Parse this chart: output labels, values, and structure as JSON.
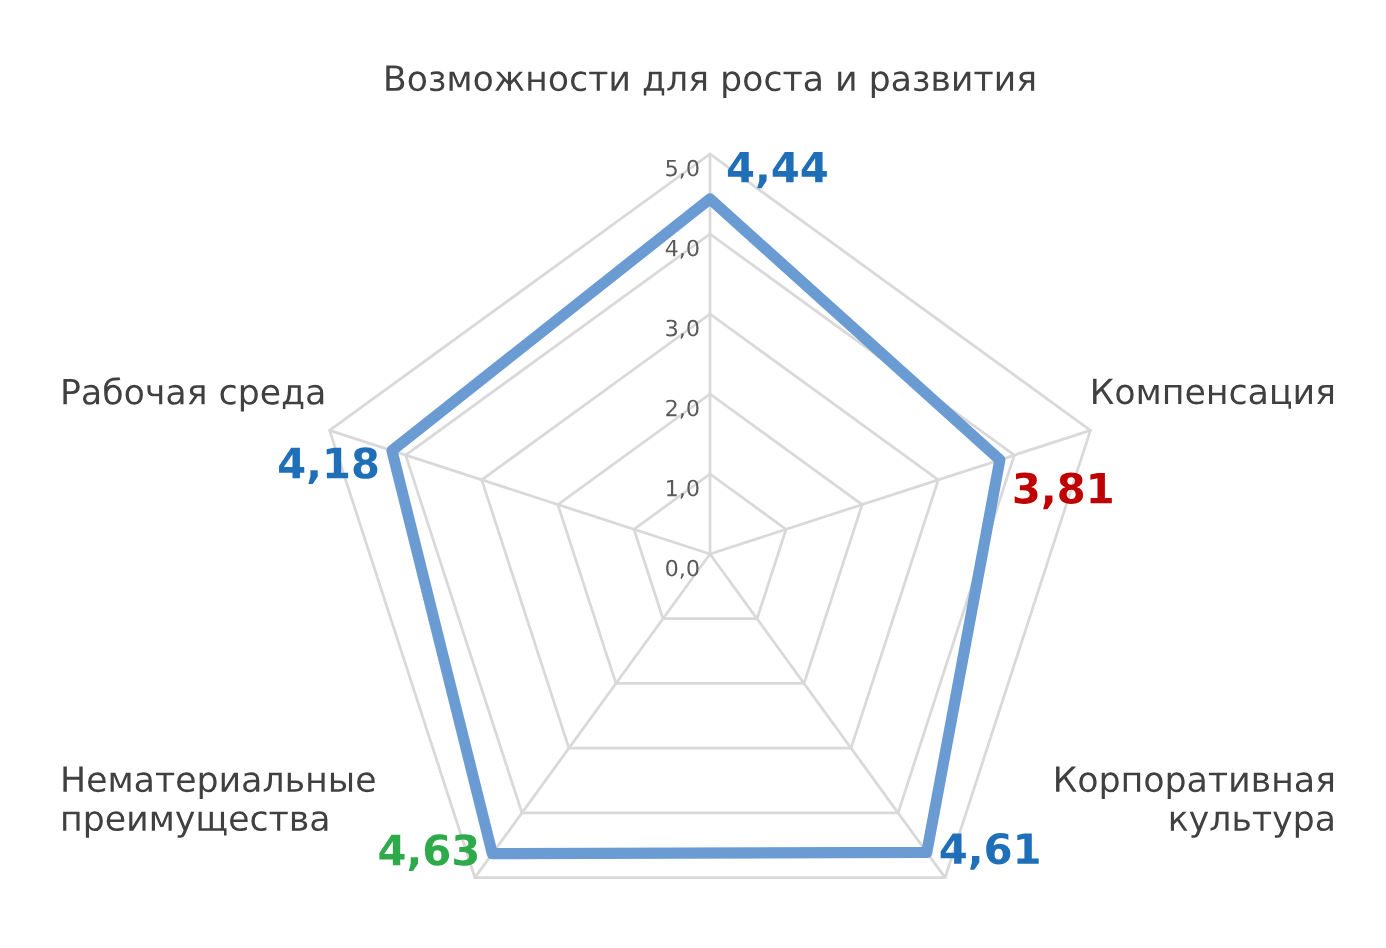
{
  "chart_data": {
    "type": "radar",
    "categories": [
      "Возможности для роста и развития",
      "Компенсация",
      "Корпоративная\nкультура",
      "Нематериальные\nпреимущества",
      "Рабочая среда"
    ],
    "series": [
      {
        "color": "#6a9bd2",
        "values": [
          4.44,
          3.81,
          4.61,
          4.63,
          4.18
        ],
        "value_labels": [
          "4,44",
          "3,81",
          "4,61",
          "4,63",
          "4,18"
        ],
        "colors": [
          "#1f6fb8",
          "#c00000",
          "#1f6fb8",
          "#2eaa4a",
          "#1f6fb8"
        ]
      }
    ],
    "ylim": [
      0,
      5
    ],
    "yticks": [
      {
        "value": 0,
        "label": "0,0"
      },
      {
        "value": 1,
        "label": "1,0"
      },
      {
        "value": 2,
        "label": "2,0"
      },
      {
        "value": 3,
        "label": "3,0"
      },
      {
        "value": 4,
        "label": "4,0"
      },
      {
        "value": 5,
        "label": "5,0"
      }
    ],
    "grid": true,
    "marker": "none",
    "line_style": "solid"
  }
}
